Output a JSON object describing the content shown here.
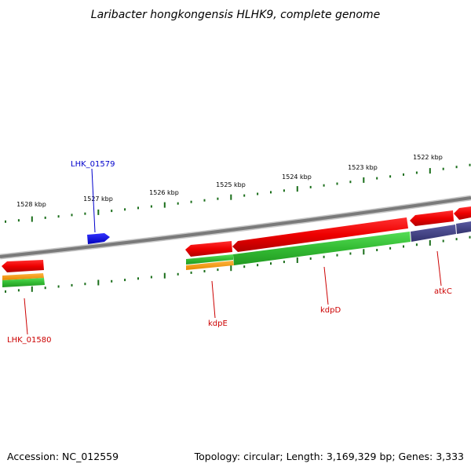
{
  "title": "Laribacter hongkongensis HLHK9, complete genome",
  "footer": {
    "accession": "Accession: NC_012559",
    "summary": "Topology: circular; Length: 3,169,329 bp; Genes: 3,333"
  },
  "kbp_labels": [
    "1528 kbp",
    "1527 kbp",
    "1526 kbp",
    "1525 kbp",
    "1524 kbp",
    "1523 kbp",
    "1522 kbp"
  ],
  "genes": [
    {
      "name": "LHK_01579",
      "color": "#0000cc"
    },
    {
      "name": "LHK_01580",
      "color": "#cc0000"
    },
    {
      "name": "kdpE",
      "color": "#cc0000"
    },
    {
      "name": "kdpD",
      "color": "#cc0000"
    },
    {
      "name": "atkC",
      "color": "#cc0000"
    }
  ],
  "colors": {
    "backbone": "#7a7a7a",
    "ticks": "#1a6e1a",
    "cds_red": "#ee0000",
    "cds_green": "#33bb33",
    "cds_orange": "#ff9900",
    "cds_blue": "#0000ee",
    "cds_purple": "#444488"
  }
}
